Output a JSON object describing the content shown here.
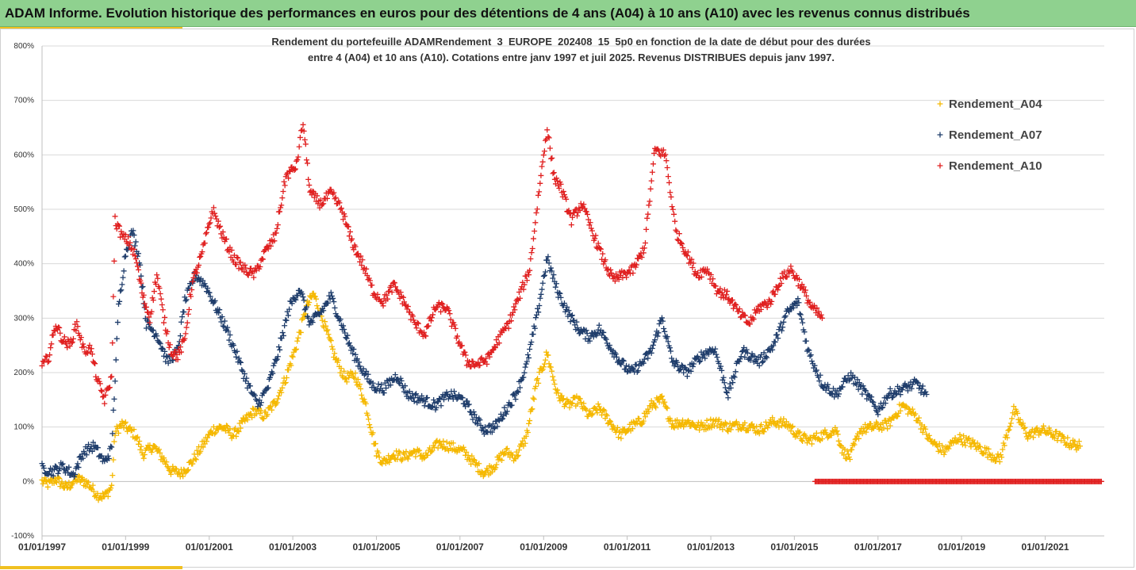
{
  "header": {
    "title": "ADAM Informe. Evolution historique des performances en euros pour des détentions de 4 ans (A04) à 10 ans (A10) avec les revenus connus distribués"
  },
  "colors": {
    "banner": "#8fd18f",
    "accent": "#f0c020",
    "grid": "#d9d9d9",
    "axis": "#bfbfbf"
  },
  "chart_data": {
    "type": "scatter",
    "title_line1": "Rendement du portefeuille ADAMRendement_3_EUROPE_202408_15_5p0  en fonction de la date de début pour des durées",
    "title_line2": "entre 4 (A04) et 10 ans (A10). Cotations  entre janv 1997 et juil 2025. Revenus DISTRIBUES depuis janv 1997.",
    "xlim": [
      "1997-01-01",
      "2022-06-01"
    ],
    "ylim": [
      -100,
      800
    ],
    "y_ticks": [
      -100,
      0,
      100,
      200,
      300,
      400,
      500,
      600,
      700,
      800
    ],
    "y_tick_labels": [
      "-100%",
      "0%",
      "100%",
      "200%",
      "300%",
      "400%",
      "500%",
      "600%",
      "700%",
      "800%"
    ],
    "x_ticks": [
      "1997-01-01",
      "1999-01-01",
      "2001-01-01",
      "2003-01-01",
      "2005-01-01",
      "2007-01-01",
      "2009-01-01",
      "2011-01-01",
      "2013-01-01",
      "2015-01-01",
      "2017-01-01",
      "2019-01-01",
      "2021-01-01"
    ],
    "x_tick_labels": [
      "01/01/1997",
      "01/01/1999",
      "01/01/2001",
      "01/01/2003",
      "01/01/2005",
      "01/01/2007",
      "01/01/2009",
      "01/01/2011",
      "01/01/2013",
      "01/01/2015",
      "01/01/2017",
      "01/01/2019",
      "01/01/2021"
    ],
    "grid": true,
    "legend_position": "right",
    "marker": "plus",
    "series": [
      {
        "name": "Rendement_A04",
        "color": "#f5b800",
        "points": [
          [
            "1997-01-01",
            0
          ],
          [
            "1997-03-01",
            -5
          ],
          [
            "1997-05-01",
            5
          ],
          [
            "1997-08-01",
            -12
          ],
          [
            "1997-11-01",
            5
          ],
          [
            "1998-02-01",
            -3
          ],
          [
            "1998-05-01",
            -25
          ],
          [
            "1998-07-01",
            -28
          ],
          [
            "1998-09-01",
            -10
          ],
          [
            "1998-10-01",
            90
          ],
          [
            "1998-12-01",
            105
          ],
          [
            "1999-02-01",
            95
          ],
          [
            "1999-04-01",
            85
          ],
          [
            "1999-06-01",
            50
          ],
          [
            "1999-09-01",
            65
          ],
          [
            "1999-12-01",
            40
          ],
          [
            "2000-02-01",
            20
          ],
          [
            "2000-05-01",
            15
          ],
          [
            "2000-08-01",
            35
          ],
          [
            "2000-11-01",
            65
          ],
          [
            "2001-02-01",
            95
          ],
          [
            "2001-05-01",
            100
          ],
          [
            "2001-08-01",
            85
          ],
          [
            "2001-11-01",
            110
          ],
          [
            "2002-02-01",
            130
          ],
          [
            "2002-05-01",
            120
          ],
          [
            "2002-08-01",
            145
          ],
          [
            "2002-11-01",
            190
          ],
          [
            "2003-02-01",
            250
          ],
          [
            "2003-05-01",
            320
          ],
          [
            "2003-07-01",
            345
          ],
          [
            "2003-10-01",
            290
          ],
          [
            "2004-01-01",
            230
          ],
          [
            "2004-04-01",
            190
          ],
          [
            "2004-07-01",
            195
          ],
          [
            "2004-10-01",
            140
          ],
          [
            "2005-01-01",
            55
          ],
          [
            "2005-03-01",
            35
          ],
          [
            "2005-06-01",
            50
          ],
          [
            "2005-09-01",
            45
          ],
          [
            "2005-12-01",
            55
          ],
          [
            "2006-03-01",
            45
          ],
          [
            "2006-07-01",
            70
          ],
          [
            "2006-10-01",
            65
          ],
          [
            "2007-02-01",
            55
          ],
          [
            "2007-05-01",
            35
          ],
          [
            "2007-08-01",
            15
          ],
          [
            "2007-11-01",
            30
          ],
          [
            "2008-02-01",
            55
          ],
          [
            "2008-05-01",
            45
          ],
          [
            "2008-08-01",
            80
          ],
          [
            "2008-11-01",
            180
          ],
          [
            "2009-02-01",
            235
          ],
          [
            "2009-05-01",
            160
          ],
          [
            "2009-08-01",
            140
          ],
          [
            "2009-11-01",
            150
          ],
          [
            "2010-02-01",
            120
          ],
          [
            "2010-05-01",
            135
          ],
          [
            "2010-08-01",
            110
          ],
          [
            "2010-11-01",
            85
          ],
          [
            "2011-02-01",
            100
          ],
          [
            "2011-05-01",
            110
          ],
          [
            "2011-08-01",
            140
          ],
          [
            "2011-11-01",
            150
          ],
          [
            "2012-02-01",
            105
          ],
          [
            "2012-06-01",
            110
          ],
          [
            "2012-10-01",
            100
          ],
          [
            "2013-02-01",
            110
          ],
          [
            "2013-06-01",
            100
          ],
          [
            "2013-10-01",
            105
          ],
          [
            "2014-03-01",
            95
          ],
          [
            "2014-07-01",
            110
          ],
          [
            "2014-11-01",
            105
          ],
          [
            "2015-02-01",
            85
          ],
          [
            "2015-05-01",
            75
          ],
          [
            "2015-09-01",
            85
          ],
          [
            "2016-01-01",
            95
          ],
          [
            "2016-03-01",
            55
          ],
          [
            "2016-05-01",
            45
          ],
          [
            "2016-08-01",
            95
          ],
          [
            "2016-12-01",
            100
          ],
          [
            "2017-04-01",
            105
          ],
          [
            "2017-08-01",
            140
          ],
          [
            "2017-12-01",
            120
          ],
          [
            "2018-04-01",
            75
          ],
          [
            "2018-08-01",
            55
          ],
          [
            "2018-12-01",
            80
          ],
          [
            "2019-04-01",
            70
          ],
          [
            "2019-08-01",
            55
          ],
          [
            "2019-12-01",
            40
          ],
          [
            "2020-04-01",
            130
          ],
          [
            "2020-08-01",
            85
          ],
          [
            "2020-12-01",
            95
          ],
          [
            "2021-04-01",
            85
          ],
          [
            "2021-08-01",
            70
          ],
          [
            "2021-11-01",
            65
          ]
        ]
      },
      {
        "name": "Rendement_A07",
        "color": "#1f3d6b",
        "points": [
          [
            "1997-01-01",
            25
          ],
          [
            "1997-04-01",
            18
          ],
          [
            "1997-07-01",
            28
          ],
          [
            "1997-10-01",
            12
          ],
          [
            "1998-01-01",
            55
          ],
          [
            "1998-04-01",
            65
          ],
          [
            "1998-07-01",
            35
          ],
          [
            "1998-09-01",
            60
          ],
          [
            "1998-11-01",
            320
          ],
          [
            "1999-01-01",
            420
          ],
          [
            "1999-03-01",
            460
          ],
          [
            "1999-05-01",
            410
          ],
          [
            "1999-07-01",
            290
          ],
          [
            "1999-10-01",
            270
          ],
          [
            "2000-01-01",
            220
          ],
          [
            "2000-04-01",
            240
          ],
          [
            "2000-06-01",
            330
          ],
          [
            "2000-09-01",
            380
          ],
          [
            "2000-12-01",
            360
          ],
          [
            "2001-03-01",
            320
          ],
          [
            "2001-06-01",
            280
          ],
          [
            "2001-09-01",
            230
          ],
          [
            "2001-12-01",
            180
          ],
          [
            "2002-03-01",
            140
          ],
          [
            "2002-06-01",
            175
          ],
          [
            "2002-09-01",
            240
          ],
          [
            "2002-12-01",
            320
          ],
          [
            "2003-03-01",
            355
          ],
          [
            "2003-06-01",
            290
          ],
          [
            "2003-09-01",
            310
          ],
          [
            "2003-12-01",
            340
          ],
          [
            "2004-03-01",
            290
          ],
          [
            "2004-06-01",
            240
          ],
          [
            "2004-09-01",
            205
          ],
          [
            "2004-12-01",
            175
          ],
          [
            "2005-03-01",
            170
          ],
          [
            "2005-07-01",
            195
          ],
          [
            "2005-10-01",
            160
          ],
          [
            "2006-02-01",
            150
          ],
          [
            "2006-06-01",
            140
          ],
          [
            "2006-10-01",
            160
          ],
          [
            "2007-02-01",
            150
          ],
          [
            "2007-05-01",
            120
          ],
          [
            "2007-08-01",
            95
          ],
          [
            "2007-11-01",
            100
          ],
          [
            "2008-02-01",
            130
          ],
          [
            "2008-05-01",
            160
          ],
          [
            "2008-08-01",
            210
          ],
          [
            "2008-11-01",
            300
          ],
          [
            "2009-02-01",
            410
          ],
          [
            "2009-05-01",
            350
          ],
          [
            "2009-08-01",
            310
          ],
          [
            "2009-11-01",
            280
          ],
          [
            "2010-02-01",
            265
          ],
          [
            "2010-05-01",
            280
          ],
          [
            "2010-08-01",
            250
          ],
          [
            "2010-11-01",
            220
          ],
          [
            "2011-02-01",
            200
          ],
          [
            "2011-05-01",
            215
          ],
          [
            "2011-08-01",
            240
          ],
          [
            "2011-11-01",
            300
          ],
          [
            "2012-02-01",
            220
          ],
          [
            "2012-06-01",
            200
          ],
          [
            "2012-10-01",
            230
          ],
          [
            "2013-02-01",
            245
          ],
          [
            "2013-06-01",
            160
          ],
          [
            "2013-10-01",
            240
          ],
          [
            "2014-03-01",
            220
          ],
          [
            "2014-07-01",
            250
          ],
          [
            "2014-11-01",
            310
          ],
          [
            "2015-02-01",
            330
          ],
          [
            "2015-05-01",
            240
          ],
          [
            "2015-09-01",
            180
          ],
          [
            "2016-01-01",
            160
          ],
          [
            "2016-05-01",
            195
          ],
          [
            "2016-09-01",
            165
          ],
          [
            "2017-01-01",
            130
          ],
          [
            "2017-04-01",
            160
          ],
          [
            "2017-08-01",
            170
          ],
          [
            "2017-12-01",
            180
          ],
          [
            "2018-03-01",
            160
          ]
        ]
      },
      {
        "name": "Rendement_A10",
        "color": "#e02020",
        "points": [
          [
            "1997-01-01",
            210
          ],
          [
            "1997-03-01",
            230
          ],
          [
            "1997-05-01",
            290
          ],
          [
            "1997-07-01",
            260
          ],
          [
            "1997-09-01",
            250
          ],
          [
            "1997-11-01",
            290
          ],
          [
            "1998-01-01",
            240
          ],
          [
            "1998-03-01",
            245
          ],
          [
            "1998-05-01",
            185
          ],
          [
            "1998-07-01",
            150
          ],
          [
            "1998-09-01",
            190
          ],
          [
            "1998-10-01",
            480
          ],
          [
            "1998-12-01",
            450
          ],
          [
            "1999-02-01",
            440
          ],
          [
            "1999-04-01",
            410
          ],
          [
            "1999-06-01",
            340
          ],
          [
            "1999-08-01",
            300
          ],
          [
            "1999-10-01",
            380
          ],
          [
            "1999-12-01",
            300
          ],
          [
            "2000-02-01",
            240
          ],
          [
            "2000-04-01",
            230
          ],
          [
            "2000-06-01",
            260
          ],
          [
            "2000-08-01",
            360
          ],
          [
            "2000-11-01",
            420
          ],
          [
            "2001-02-01",
            500
          ],
          [
            "2001-05-01",
            450
          ],
          [
            "2001-08-01",
            410
          ],
          [
            "2001-11-01",
            390
          ],
          [
            "2002-02-01",
            380
          ],
          [
            "2002-05-01",
            420
          ],
          [
            "2002-08-01",
            450
          ],
          [
            "2002-11-01",
            560
          ],
          [
            "2003-02-01",
            580
          ],
          [
            "2003-04-01",
            660
          ],
          [
            "2003-06-01",
            530
          ],
          [
            "2003-09-01",
            510
          ],
          [
            "2003-12-01",
            530
          ],
          [
            "2004-03-01",
            500
          ],
          [
            "2004-06-01",
            440
          ],
          [
            "2004-09-01",
            400
          ],
          [
            "2004-12-01",
            350
          ],
          [
            "2005-03-01",
            330
          ],
          [
            "2005-06-01",
            360
          ],
          [
            "2005-09-01",
            330
          ],
          [
            "2005-12-01",
            290
          ],
          [
            "2006-03-01",
            270
          ],
          [
            "2006-06-01",
            320
          ],
          [
            "2006-09-01",
            320
          ],
          [
            "2006-12-01",
            270
          ],
          [
            "2007-03-01",
            220
          ],
          [
            "2007-06-01",
            215
          ],
          [
            "2007-09-01",
            225
          ],
          [
            "2007-12-01",
            260
          ],
          [
            "2008-03-01",
            290
          ],
          [
            "2008-06-01",
            340
          ],
          [
            "2008-09-01",
            390
          ],
          [
            "2008-12-01",
            550
          ],
          [
            "2009-02-01",
            650
          ],
          [
            "2009-04-01",
            560
          ],
          [
            "2009-06-01",
            540
          ],
          [
            "2009-09-01",
            480
          ],
          [
            "2009-12-01",
            510
          ],
          [
            "2010-03-01",
            460
          ],
          [
            "2010-06-01",
            410
          ],
          [
            "2010-09-01",
            370
          ],
          [
            "2010-12-01",
            380
          ],
          [
            "2011-03-01",
            390
          ],
          [
            "2011-06-01",
            430
          ],
          [
            "2011-09-01",
            610
          ],
          [
            "2011-12-01",
            600
          ],
          [
            "2012-03-01",
            460
          ],
          [
            "2012-06-01",
            420
          ],
          [
            "2012-09-01",
            380
          ],
          [
            "2012-12-01",
            390
          ],
          [
            "2013-03-01",
            350
          ],
          [
            "2013-06-01",
            340
          ],
          [
            "2013-09-01",
            310
          ],
          [
            "2013-12-01",
            290
          ],
          [
            "2014-03-01",
            320
          ],
          [
            "2014-06-01",
            330
          ],
          [
            "2014-09-01",
            370
          ],
          [
            "2014-12-01",
            390
          ],
          [
            "2015-03-01",
            360
          ],
          [
            "2015-06-01",
            320
          ],
          [
            "2015-09-01",
            300
          ]
        ]
      },
      {
        "name": "Rendement_A10_zero",
        "legend": false,
        "color": "#e02020",
        "range": [
          "2015-07-01",
          "2022-05-15"
        ],
        "value": 0
      }
    ]
  }
}
